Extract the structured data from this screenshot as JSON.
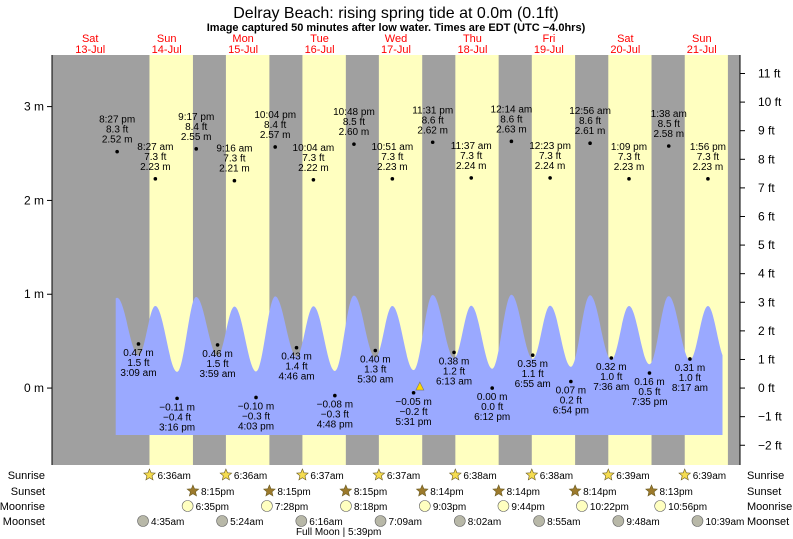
{
  "header": {
    "title": "Delray Beach: rising  spring tide at 0.0m (0.1ft)",
    "subtitle": "Image captured 50 minutes after low water. Times are EDT (UTC −4.0hrs)"
  },
  "colors": {
    "night": "#a0a0a0",
    "day": "#ffffc0",
    "water": "#9aa9ff",
    "day_label": "#ff0000",
    "sun_icon": "#f5dc50",
    "sunset_icon": "#9c7a2c",
    "moonrise_icon": "#ffffc0",
    "moonset_icon": "#b8b8a8"
  },
  "days": [
    {
      "name": "Sat",
      "date": "13‐Jul"
    },
    {
      "name": "Sun",
      "date": "14‐Jul"
    },
    {
      "name": "Mon",
      "date": "15‐Jul"
    },
    {
      "name": "Tue",
      "date": "16‐Jul"
    },
    {
      "name": "Wed",
      "date": "17‐Jul"
    },
    {
      "name": "Thu",
      "date": "18‐Jul"
    },
    {
      "name": "Fri",
      "date": "19‐Jul"
    },
    {
      "name": "Sat",
      "date": "20‐Jul"
    },
    {
      "name": "Sun",
      "date": "21‐Jul"
    }
  ],
  "chart_data": {
    "type": "area",
    "ylabel_left_unit": "m",
    "ylabel_right_unit": "ft",
    "ylim_m": [
      -0.82,
      3.55
    ],
    "yticks_m": [
      "3 m",
      "2 m",
      "1 m",
      "0 m"
    ],
    "yticks_m_values": [
      3,
      2,
      1,
      0
    ],
    "yticks_ft": [
      "11 ft",
      "10 ft",
      "9 ft",
      "8 ft",
      "7 ft",
      "6 ft",
      "5 ft",
      "4 ft",
      "3 ft",
      "2 ft",
      "1 ft",
      "0 ft",
      "−1 ft",
      "−2 ft"
    ],
    "yticks_ft_values": [
      11,
      10,
      9,
      8,
      7,
      6,
      5,
      4,
      3,
      2,
      1,
      0,
      -1,
      -2
    ],
    "time_origin": "2024-07-13 00:00 EDT",
    "highs": [
      {
        "time": "8:27 pm",
        "day": 0,
        "m": "2.52 m",
        "ft": "8.3 ft",
        "val": 2.52,
        "t": 20.45
      },
      {
        "time": "8:27 am",
        "day": 1,
        "m": "2.23 m",
        "ft": "7.3 ft",
        "val": 2.23,
        "t": 32.45
      },
      {
        "time": "9:17 pm",
        "day": 1,
        "m": "2.55 m",
        "ft": "8.4 ft",
        "val": 2.55,
        "t": 45.28
      },
      {
        "time": "9:16 am",
        "day": 2,
        "m": "2.21 m",
        "ft": "7.3 ft",
        "val": 2.21,
        "t": 57.27
      },
      {
        "time": "10:04 pm",
        "day": 2,
        "m": "2.57 m",
        "ft": "8.4 ft",
        "val": 2.57,
        "t": 70.07
      },
      {
        "time": "10:04 am",
        "day": 3,
        "m": "2.22 m",
        "ft": "7.3 ft",
        "val": 2.22,
        "t": 82.07
      },
      {
        "time": "10:48 pm",
        "day": 3,
        "m": "2.60 m",
        "ft": "8.5 ft",
        "val": 2.6,
        "t": 94.8
      },
      {
        "time": "10:51 am",
        "day": 4,
        "m": "2.23 m",
        "ft": "7.3 ft",
        "val": 2.23,
        "t": 106.85
      },
      {
        "time": "11:31 pm",
        "day": 4,
        "m": "2.62 m",
        "ft": "8.6 ft",
        "val": 2.62,
        "t": 119.52
      },
      {
        "time": "11:37 am",
        "day": 5,
        "m": "2.24 m",
        "ft": "7.3 ft",
        "val": 2.24,
        "t": 131.62
      },
      {
        "time": "12:14 am",
        "day": 6,
        "m": "2.63 m",
        "ft": "8.6 ft",
        "val": 2.63,
        "t": 144.23
      },
      {
        "time": "12:23 pm",
        "day": 6,
        "m": "2.24 m",
        "ft": "7.3 ft",
        "val": 2.24,
        "t": 156.38
      },
      {
        "time": "12:56 am",
        "day": 7,
        "m": "2.61 m",
        "ft": "8.6 ft",
        "val": 2.61,
        "t": 168.93
      },
      {
        "time": "1:09 pm",
        "day": 7,
        "m": "2.23 m",
        "ft": "7.3 ft",
        "val": 2.23,
        "t": 181.15
      },
      {
        "time": "1:38 am",
        "day": 8,
        "m": "2.58 m",
        "ft": "8.5 ft",
        "val": 2.58,
        "t": 193.63
      },
      {
        "time": "1:56 pm",
        "day": 8,
        "m": "2.23 m",
        "ft": "7.3 ft",
        "val": 2.23,
        "t": 205.93
      }
    ],
    "lows": [
      {
        "time": "3:09 am",
        "day": 1,
        "m": "0.47 m",
        "ft": "1.5 ft",
        "val": 0.47,
        "t": 27.15
      },
      {
        "time": "3:16 pm",
        "day": 1,
        "m": "−0.11 m",
        "ft": "−0.4 ft",
        "val": -0.11,
        "t": 39.27
      },
      {
        "time": "3:59 am",
        "day": 2,
        "m": "0.46 m",
        "ft": "1.5 ft",
        "val": 0.46,
        "t": 51.98
      },
      {
        "time": "4:03 pm",
        "day": 2,
        "m": "−0.10 m",
        "ft": "−0.3 ft",
        "val": -0.1,
        "t": 64.05
      },
      {
        "time": "4:46 am",
        "day": 3,
        "m": "0.43 m",
        "ft": "1.4 ft",
        "val": 0.43,
        "t": 76.77
      },
      {
        "time": "4:48 pm",
        "day": 3,
        "m": "−0.08 m",
        "ft": "−0.3 ft",
        "val": -0.08,
        "t": 88.8
      },
      {
        "time": "5:30 am",
        "day": 4,
        "m": "0.40 m",
        "ft": "1.3 ft",
        "val": 0.4,
        "t": 101.5
      },
      {
        "time": "5:31 pm",
        "day": 4,
        "m": "−0.05 m",
        "ft": "−0.2 ft",
        "val": -0.05,
        "t": 113.52
      },
      {
        "time": "6:13 am",
        "day": 5,
        "m": "0.38 m",
        "ft": "1.2 ft",
        "val": 0.38,
        "t": 126.22
      },
      {
        "time": "6:12 pm",
        "day": 5,
        "m": "0.00 m",
        "ft": "0.0 ft",
        "val": 0.0,
        "t": 138.2
      },
      {
        "time": "6:55 am",
        "day": 6,
        "m": "0.35 m",
        "ft": "1.1 ft",
        "val": 0.35,
        "t": 150.92
      },
      {
        "time": "6:54 pm",
        "day": 6,
        "m": "0.07 m",
        "ft": "0.2 ft",
        "val": 0.07,
        "t": 162.9
      },
      {
        "time": "7:36 am",
        "day": 7,
        "m": "0.32 m",
        "ft": "1.0 ft",
        "val": 0.32,
        "t": 175.6
      },
      {
        "time": "7:35 pm",
        "day": 7,
        "m": "0.16 m",
        "ft": "0.5 ft",
        "val": 0.16,
        "t": 187.58
      },
      {
        "time": "8:17 am",
        "day": 8,
        "m": "0.31 m",
        "ft": "1.0 ft",
        "val": 0.31,
        "t": 200.28
      }
    ],
    "daylight": [
      {
        "sunrise": 30.6,
        "sunset": 44.25
      },
      {
        "sunrise": 54.6,
        "sunset": 68.25
      },
      {
        "sunrise": 78.62,
        "sunset": 92.25
      },
      {
        "sunrise": 102.62,
        "sunset": 116.23
      },
      {
        "sunrise": 126.63,
        "sunset": 140.23
      },
      {
        "sunrise": 150.63,
        "sunset": 164.23
      },
      {
        "sunrise": 174.65,
        "sunset": 188.22
      },
      {
        "sunrise": 198.65,
        "sunset": 212.2
      }
    ],
    "t_range": [
      0,
      216
    ],
    "data_t_range": [
      20.0,
      210.5
    ],
    "grid": false
  },
  "astro": {
    "row_labels": [
      "Sunrise",
      "Sunset",
      "Moonrise",
      "Moonset"
    ],
    "sunrise": [
      "6:36am",
      "6:36am",
      "6:37am",
      "6:37am",
      "6:38am",
      "6:38am",
      "6:39am",
      "6:39am"
    ],
    "sunset": [
      "8:15pm",
      "8:15pm",
      "8:15pm",
      "8:14pm",
      "8:14pm",
      "8:14pm",
      "8:13pm"
    ],
    "moonrise": [
      "6:35pm",
      "7:28pm",
      "8:18pm",
      "9:03pm",
      "9:44pm",
      "10:22pm",
      "10:56pm"
    ],
    "moonset": [
      "4:35am",
      "5:24am",
      "6:16am",
      "7:09am",
      "8:02am",
      "8:55am",
      "9:48am",
      "10:39am"
    ],
    "full_moon": "Full Moon | 5:39pm"
  }
}
